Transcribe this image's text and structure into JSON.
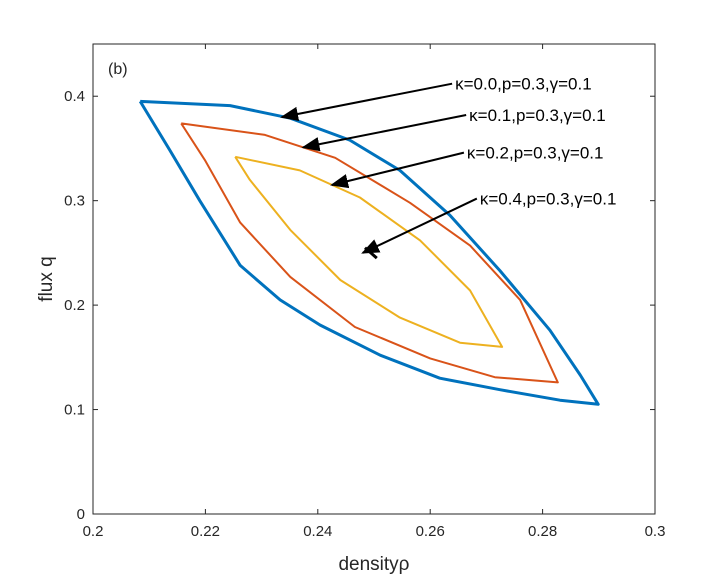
{
  "chart_data": {
    "type": "line",
    "panel_label": "(b)",
    "xlabel": "densityρ",
    "ylabel": "flux q",
    "xlim": [
      0.2,
      0.3
    ],
    "ylim": [
      0,
      0.45
    ],
    "xticks": [
      0.2,
      0.22,
      0.24,
      0.26,
      0.28,
      0.3
    ],
    "xtick_labels": [
      "0.2",
      "0.22",
      "0.24",
      "0.26",
      "0.28",
      "0.3"
    ],
    "yticks": [
      0,
      0.1,
      0.2,
      0.3,
      0.4
    ],
    "ytick_labels": [
      "0",
      "0.1",
      "0.2",
      "0.3",
      "0.4"
    ],
    "grid": false,
    "series": [
      {
        "name": "κ=0.0,p=0.3,γ=0.1",
        "color": "#0072BD",
        "x": [
          0.2084,
          0.2244,
          0.2351,
          0.2457,
          0.2546,
          0.2635,
          0.2724,
          0.2813,
          0.2867,
          0.2899,
          0.2831,
          0.2724,
          0.2617,
          0.2511,
          0.2404,
          0.2333,
          0.2262,
          0.219,
          0.2137,
          0.2084
        ],
        "y": [
          0.395,
          0.391,
          0.379,
          0.358,
          0.329,
          0.286,
          0.233,
          0.176,
          0.133,
          0.105,
          0.109,
          0.119,
          0.13,
          0.152,
          0.181,
          0.205,
          0.238,
          0.3,
          0.348,
          0.395
        ]
      },
      {
        "name": "κ=0.1,p=0.3,γ=0.1",
        "color": "#D95319",
        "x": [
          0.2157,
          0.2306,
          0.2431,
          0.2564,
          0.2671,
          0.276,
          0.2827,
          0.2715,
          0.26,
          0.2466,
          0.2351,
          0.2262,
          0.2199,
          0.2157
        ],
        "y": [
          0.374,
          0.363,
          0.341,
          0.298,
          0.257,
          0.205,
          0.126,
          0.131,
          0.149,
          0.179,
          0.227,
          0.279,
          0.339,
          0.374
        ]
      },
      {
        "name": "κ=0.2,p=0.3,γ=0.1",
        "color": "#EDB120",
        "x": [
          0.2253,
          0.2368,
          0.2475,
          0.2582,
          0.2671,
          0.2728,
          0.2653,
          0.2546,
          0.244,
          0.2351,
          0.2279,
          0.2253
        ],
        "y": [
          0.342,
          0.329,
          0.303,
          0.262,
          0.214,
          0.16,
          0.164,
          0.188,
          0.224,
          0.272,
          0.32,
          0.342
        ]
      },
      {
        "name": "κ=0.4,p=0.3,γ=0.1",
        "color": "#000000",
        "x": [
          0.2484,
          0.2505
        ],
        "y": [
          0.255,
          0.245
        ]
      }
    ],
    "annotations": [
      {
        "text": "κ=0.0,p=0.3,γ=0.1",
        "tail": [
          0.2639,
          0.412
        ],
        "tip": [
          0.2336,
          0.38
        ]
      },
      {
        "text": "κ=0.1,p=0.3,γ=0.1",
        "tail": [
          0.2664,
          0.382
        ],
        "tip": [
          0.2374,
          0.351
        ]
      },
      {
        "text": "κ=0.2,p=0.3,γ=0.1",
        "tail": [
          0.266,
          0.346
        ],
        "tip": [
          0.2425,
          0.315
        ]
      },
      {
        "text": "κ=0.4,p=0.3,γ=0.1",
        "tail": [
          0.2683,
          0.302
        ],
        "tip": [
          0.248,
          0.25
        ]
      }
    ]
  }
}
